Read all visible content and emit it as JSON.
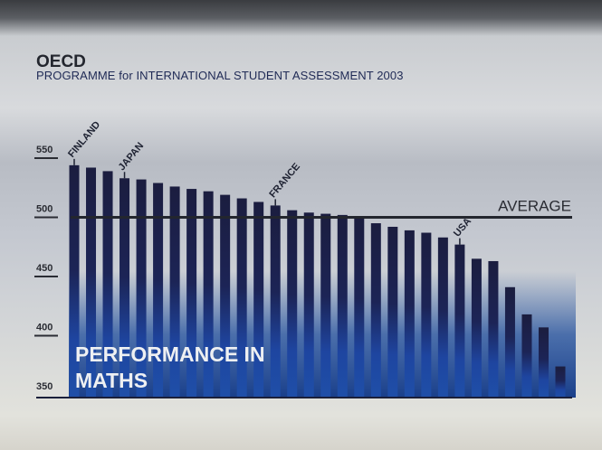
{
  "header": {
    "title": "OECD",
    "subtitle": "PROGRAMME for INTERNATIONAL STUDENT ASSESSMENT 2003"
  },
  "chart_data": {
    "type": "bar",
    "title": "PERFORMANCE IN MATHS",
    "ylim": [
      350,
      560
    ],
    "yticks": [
      550,
      500,
      450,
      400,
      350
    ],
    "average": {
      "label": "AVERAGE",
      "value": 500
    },
    "labeled_bars": [
      {
        "index": 0,
        "label": "FINLAND"
      },
      {
        "index": 3,
        "label": "JAPAN"
      },
      {
        "index": 12,
        "label": "FRANCE"
      },
      {
        "index": 23,
        "label": "USA"
      }
    ],
    "values": [
      544,
      542,
      539,
      533,
      532,
      529,
      526,
      524,
      522,
      519,
      516,
      513,
      510,
      506,
      504,
      503,
      502,
      500,
      495,
      492,
      489,
      487,
      483,
      477,
      465,
      463,
      441,
      418,
      407,
      374
    ],
    "colors": {
      "bar_top": "#1b1d3f",
      "bar_bottom": "#1f4fa8",
      "band": "#1d4c9c",
      "average_line": "#23262e"
    }
  }
}
